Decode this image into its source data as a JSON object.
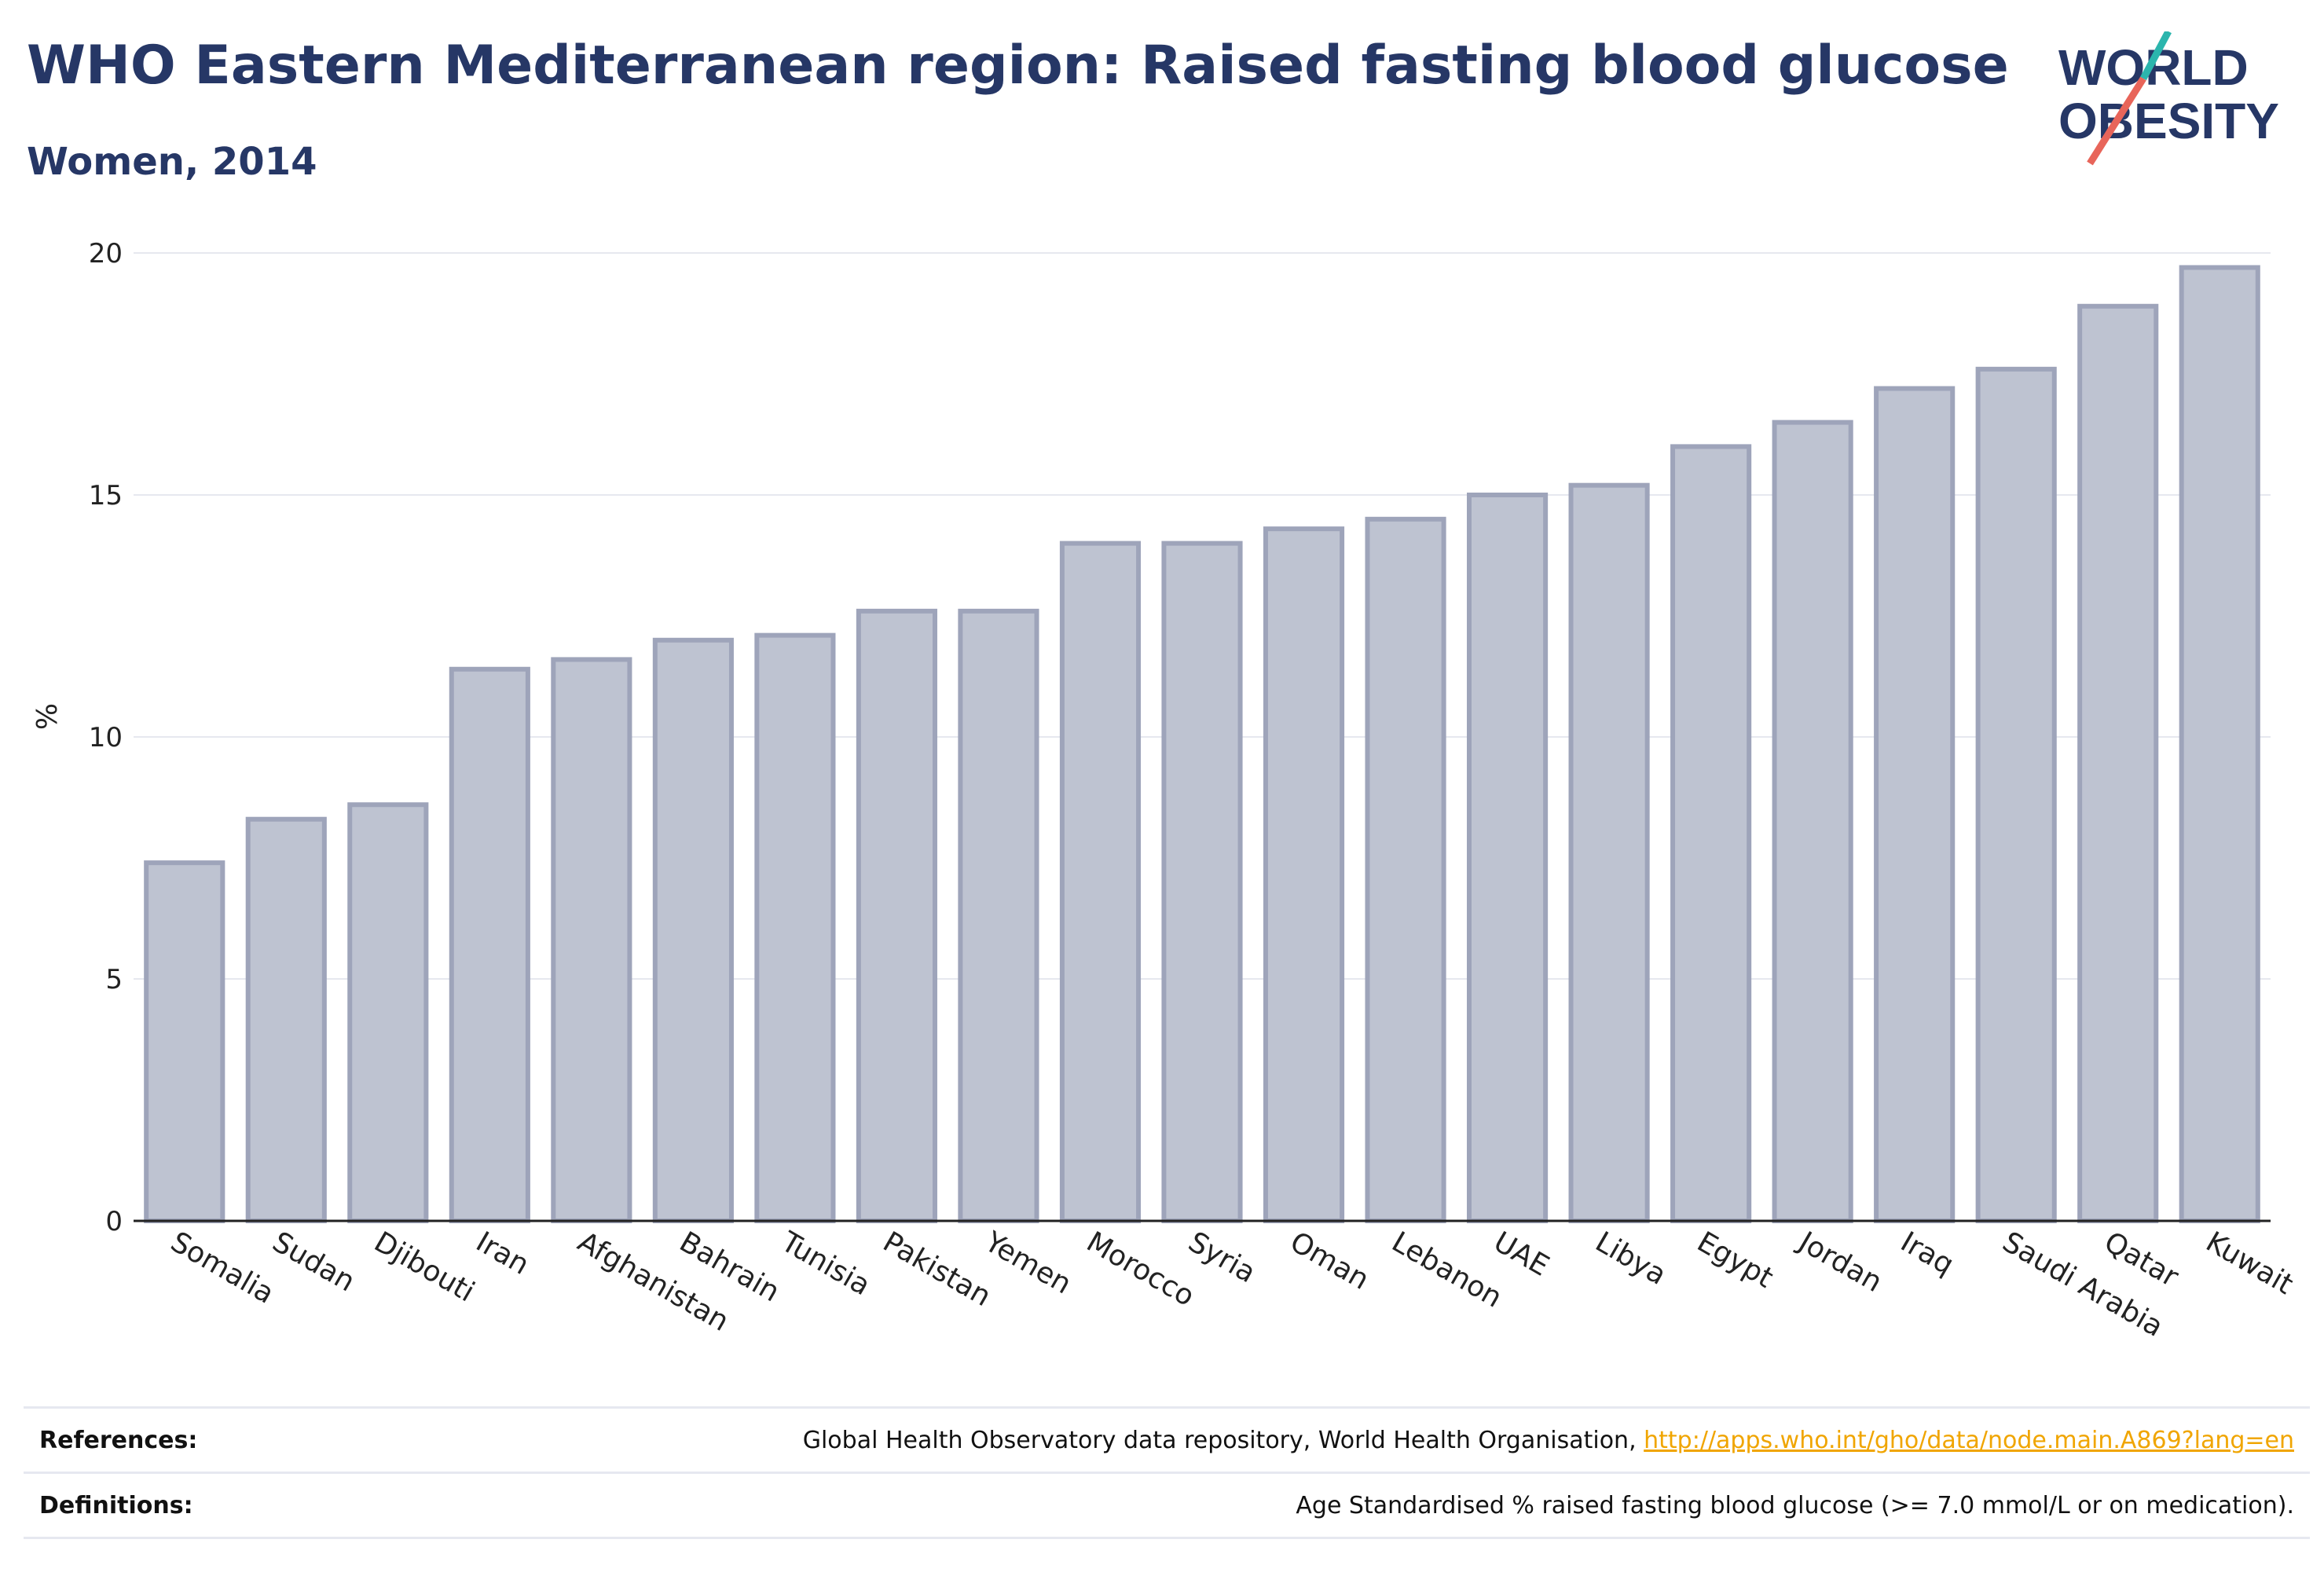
{
  "header": {
    "title": "WHO Eastern Mediterranean region: Raised fasting blood glucose",
    "subtitle": "Women, 2014"
  },
  "logo": {
    "line1": "WORLD",
    "line2": "OBESITY",
    "slash_colors": [
      "#2bb5ad",
      "#e8655a"
    ]
  },
  "chart_data": {
    "type": "bar",
    "categories": [
      "Somalia",
      "Sudan",
      "Djibouti",
      "Iran",
      "Afghanistan",
      "Bahrain",
      "Tunisia",
      "Pakistan",
      "Yemen",
      "Morocco",
      "Syria",
      "Oman",
      "Lebanon",
      "UAE",
      "Libya",
      "Egypt",
      "Jordan",
      "Iraq",
      "Saudi Arabia",
      "Qatar",
      "Kuwait"
    ],
    "values": [
      7.4,
      8.3,
      8.6,
      11.4,
      11.6,
      12.0,
      12.1,
      12.6,
      12.6,
      14.0,
      14.0,
      14.3,
      14.5,
      15.0,
      15.2,
      16.0,
      16.5,
      17.2,
      17.6,
      18.9,
      19.7
    ],
    "ylabel": "%",
    "ylim": [
      0,
      20
    ],
    "yticks": [
      "0",
      "5",
      "10",
      "15",
      "20"
    ],
    "grid": true,
    "colors": {
      "fill": "#bec3d1",
      "stroke": "#9ea4ba",
      "axis": "#222222",
      "grid": "#e6e8ef"
    }
  },
  "footer": {
    "references_label": "References:",
    "references_text": "Global Health Observatory data repository, World Health Organisation, ",
    "references_link": "http://apps.who.int/gho/data/node.main.A869?lang=en",
    "definitions_label": "Definitions:",
    "definitions_text": "Age Standardised % raised fasting blood glucose (>= 7.0 mmol/L or on medication)."
  }
}
